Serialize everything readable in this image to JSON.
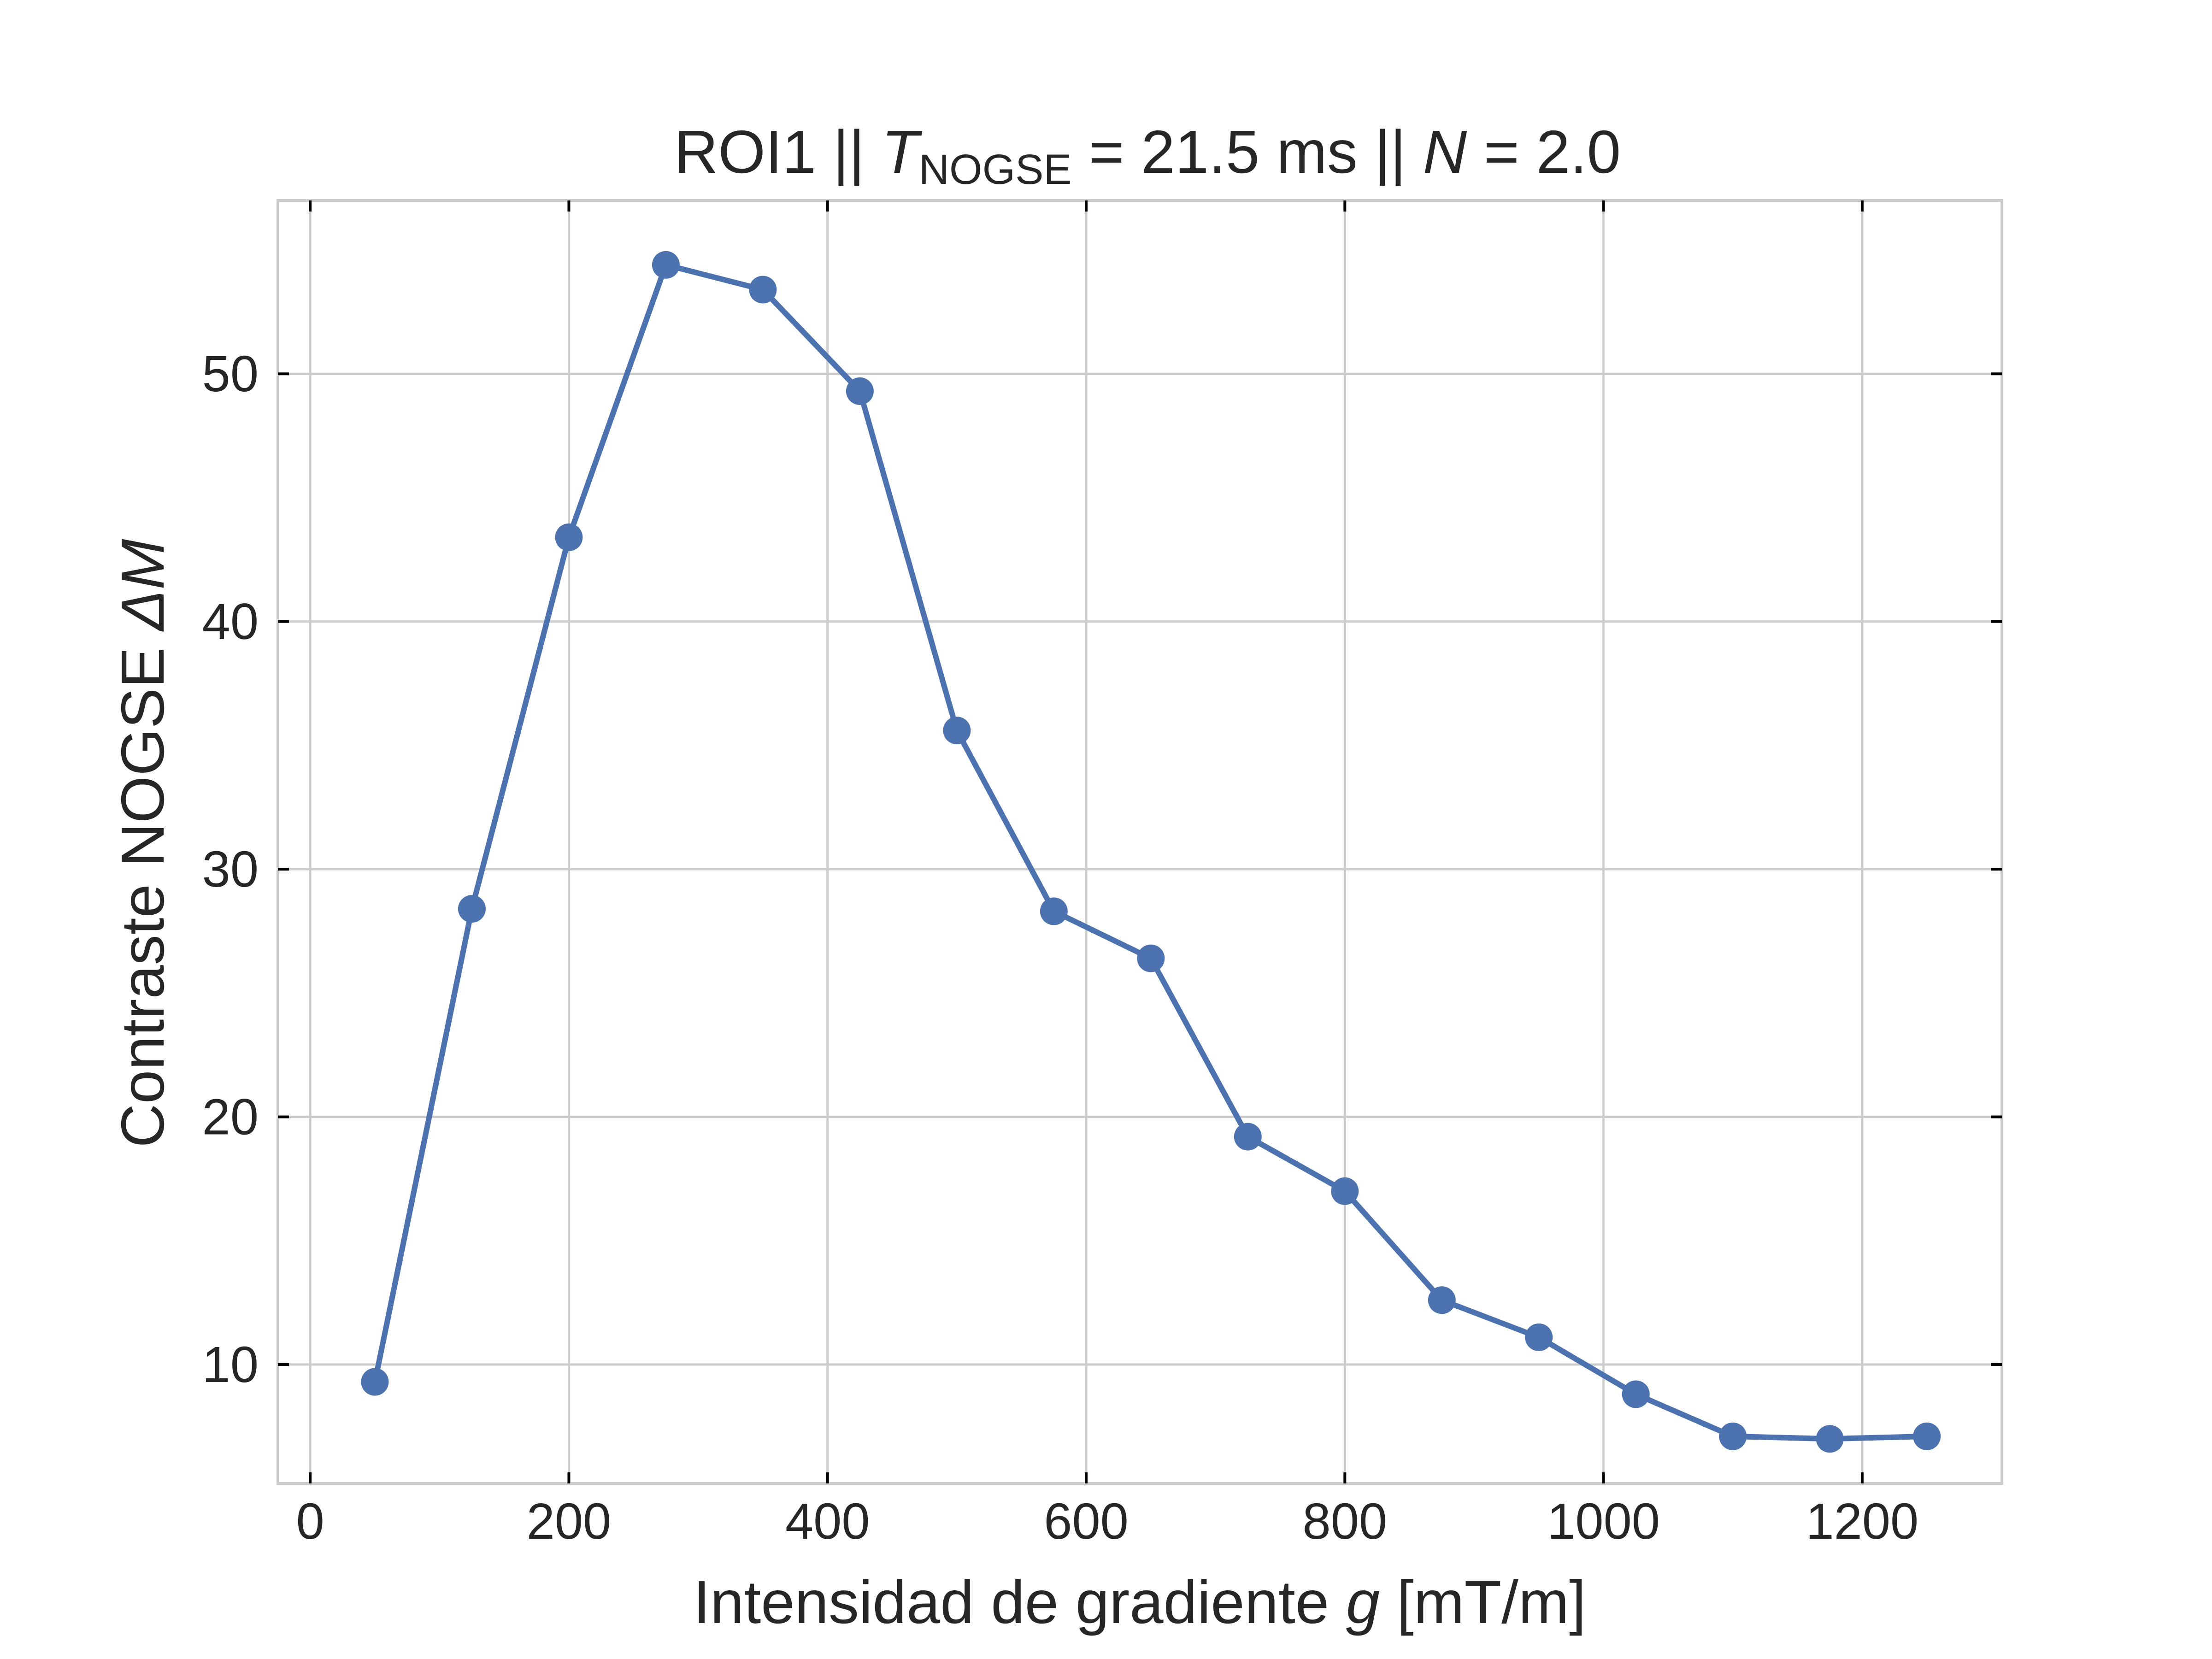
{
  "chart_data": {
    "type": "line",
    "title": {
      "prefix": "ROI1 || ",
      "t_symbol": "T",
      "t_subscript": "NOGSE",
      "middle": " = 21.5 ms  ||  ",
      "n_symbol": "N",
      "suffix": " = 2.0"
    },
    "xlabel": {
      "text": "Intensidad de gradiente ",
      "variable": "g",
      "unit": " [mT/m]"
    },
    "ylabel": {
      "text": "Contraste NOGSE ",
      "variable": "ΔM"
    },
    "xlim": [
      -25,
      1308
    ],
    "ylim": [
      5.2,
      57.0
    ],
    "xticks": [
      0,
      200,
      400,
      600,
      800,
      1000,
      1200
    ],
    "yticks": [
      10,
      20,
      30,
      40,
      50
    ],
    "grid": true,
    "color": "#4c72b0",
    "series": [
      {
        "x": [
          50,
          125,
          200,
          275,
          350,
          425,
          500,
          575,
          650,
          725,
          800,
          875,
          950,
          1025,
          1100,
          1175,
          1250
        ],
        "y": [
          9.3,
          28.4,
          43.4,
          54.4,
          53.4,
          49.3,
          35.6,
          28.3,
          26.4,
          19.2,
          17.0,
          12.6,
          11.1,
          8.8,
          7.1,
          7.0,
          7.1
        ]
      }
    ]
  }
}
